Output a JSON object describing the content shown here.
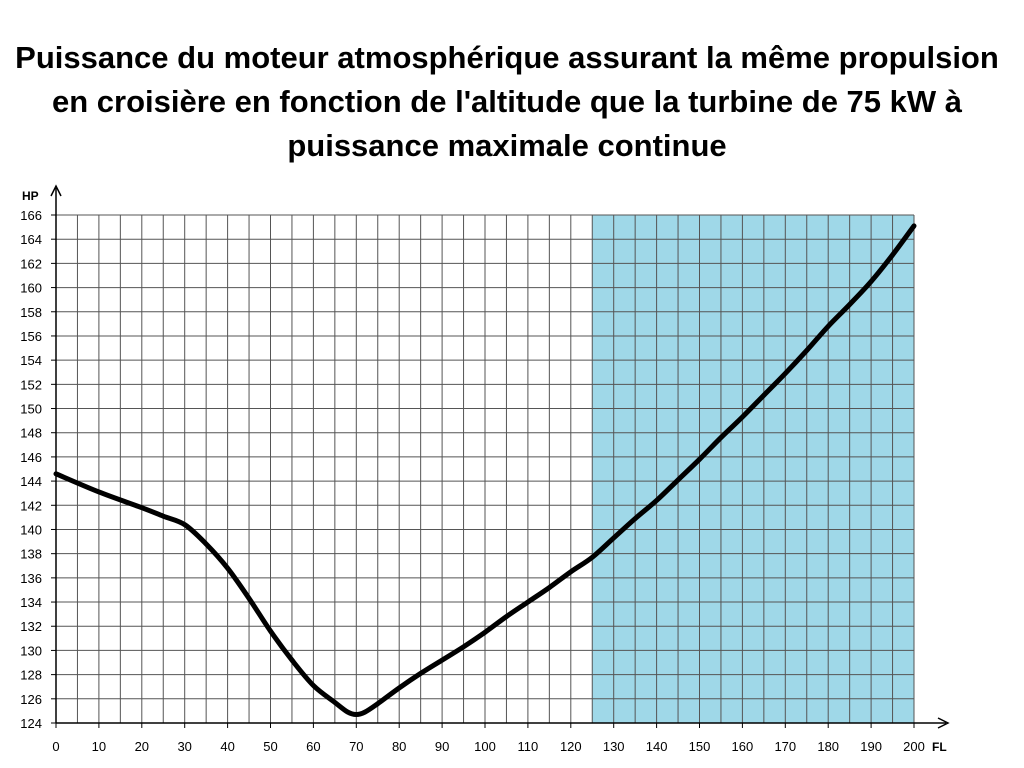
{
  "chart_data": {
    "type": "line",
    "title": "Puissance du moteur atmosphérique assurant la même propulsion\nen croisière en fonction de l'altitude que la turbine de 75 kW à\npuissance maximale continue",
    "xlabel": "FL",
    "ylabel": "HP",
    "xlim": [
      0,
      200
    ],
    "ylim": [
      124,
      166
    ],
    "x_ticks": [
      0,
      10,
      20,
      30,
      40,
      50,
      60,
      70,
      80,
      90,
      100,
      110,
      120,
      130,
      140,
      150,
      160,
      170,
      180,
      190,
      200
    ],
    "y_ticks": [
      124,
      126,
      128,
      130,
      132,
      134,
      136,
      138,
      140,
      142,
      144,
      146,
      148,
      150,
      152,
      154,
      156,
      158,
      160,
      162,
      164,
      166
    ],
    "grid": true,
    "shaded_region": {
      "x_from": 125,
      "x_to": 200,
      "color": "#9fd8e8"
    },
    "line_color": "#000000",
    "series": [
      {
        "x": [
          0,
          10,
          20,
          25,
          30,
          35,
          40,
          45,
          50,
          55,
          60,
          65,
          68,
          70,
          72,
          75,
          80,
          85,
          90,
          95,
          100,
          105,
          110,
          115,
          120,
          125,
          130,
          135,
          140,
          145,
          150,
          155,
          160,
          165,
          170,
          175,
          180,
          185,
          190,
          195,
          200
        ],
        "y": [
          144.6,
          143.1,
          141.8,
          141.1,
          140.4,
          138.8,
          136.8,
          134.3,
          131.6,
          129.2,
          127.1,
          125.7,
          124.9,
          124.7,
          124.9,
          125.6,
          126.9,
          128.1,
          129.2,
          130.3,
          131.5,
          132.8,
          134.0,
          135.2,
          136.5,
          137.7,
          139.3,
          140.9,
          142.4,
          144.1,
          145.8,
          147.6,
          149.3,
          151.1,
          152.9,
          154.8,
          156.8,
          158.6,
          160.5,
          162.7,
          165.1
        ]
      }
    ]
  }
}
